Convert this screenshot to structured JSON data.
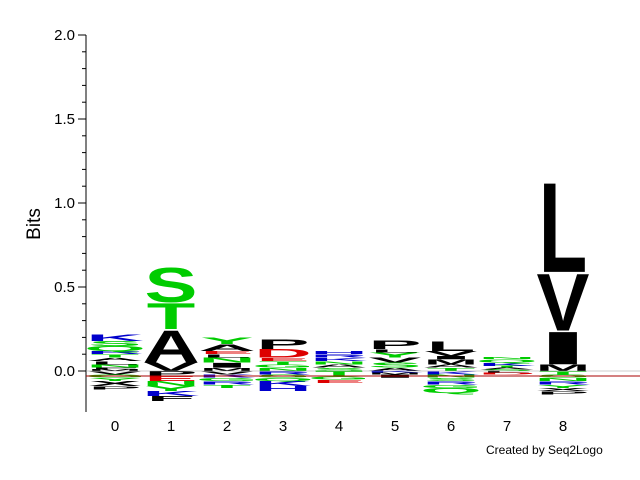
{
  "credit": "Created by Seq2Logo",
  "colors": {
    "hydrophobic": "#000000",
    "polar": "#00cc00",
    "basic": "#0000cc",
    "acidic": "#dd0000",
    "other": "#000000",
    "baseline": "#aa0000"
  },
  "chart_data": {
    "type": "sequence-logo",
    "title": "",
    "xlabel": "",
    "ylabel": "Bits",
    "ylim": [
      -0.25,
      2.0
    ],
    "yticks": [
      "0.0",
      "0.5",
      "1.0",
      "1.5",
      "2.0"
    ],
    "ytick_values": [
      0.0,
      0.5,
      1.0,
      1.5,
      2.0
    ],
    "positions": [
      "0",
      "1",
      "2",
      "3",
      "4",
      "5",
      "6",
      "7",
      "8"
    ],
    "columns": [
      {
        "position": "0",
        "positive": [
          {
            "letter": "M",
            "height": 0.01
          },
          {
            "letter": "F",
            "height": 0.01
          },
          {
            "letter": "N",
            "height": 0.02
          },
          {
            "letter": "L",
            "height": 0.02
          },
          {
            "letter": "A",
            "height": 0.02
          },
          {
            "letter": "T",
            "height": 0.02
          },
          {
            "letter": "R",
            "height": 0.02
          },
          {
            "letter": "Q",
            "height": 0.03
          },
          {
            "letter": "S",
            "height": 0.03
          },
          {
            "letter": "K",
            "height": 0.04
          }
        ],
        "negative": [
          {
            "letter": "V",
            "height": 0.02
          },
          {
            "letter": "G",
            "height": 0.02
          },
          {
            "letter": "Y",
            "height": 0.02
          },
          {
            "letter": "X",
            "height": 0.03
          },
          {
            "letter": "P",
            "height": 0.02
          }
        ]
      },
      {
        "position": "1",
        "positive": [
          {
            "letter": "V",
            "height": 0.05
          },
          {
            "letter": "A",
            "height": 0.2
          },
          {
            "letter": "T",
            "height": 0.16
          },
          {
            "letter": "S",
            "height": 0.21
          }
        ],
        "negative": [
          {
            "letter": "P",
            "height": 0.03
          },
          {
            "letter": "E",
            "height": 0.03
          },
          {
            "letter": "N",
            "height": 0.03
          },
          {
            "letter": "Y",
            "height": 0.03
          },
          {
            "letter": "K",
            "height": 0.03
          },
          {
            "letter": "F",
            "height": 0.03
          }
        ]
      },
      {
        "position": "2",
        "positive": [
          {
            "letter": "M",
            "height": 0.02
          },
          {
            "letter": "I",
            "height": 0.03
          },
          {
            "letter": "N",
            "height": 0.03
          },
          {
            "letter": "L",
            "height": 0.02
          },
          {
            "letter": "E",
            "height": 0.02
          },
          {
            "letter": "A",
            "height": 0.04
          },
          {
            "letter": "Y",
            "height": 0.04
          }
        ],
        "negative": [
          {
            "letter": "V",
            "height": 0.02
          },
          {
            "letter": "K",
            "height": 0.02
          },
          {
            "letter": "G",
            "height": 0.02
          },
          {
            "letter": "R",
            "height": 0.02
          },
          {
            "letter": "T",
            "height": 0.02
          }
        ]
      },
      {
        "position": "3",
        "positive": [
          {
            "letter": "N",
            "height": 0.02
          },
          {
            "letter": "G",
            "height": 0.02
          },
          {
            "letter": "T",
            "height": 0.02
          },
          {
            "letter": "E",
            "height": 0.02
          },
          {
            "letter": "D",
            "height": 0.05
          },
          {
            "letter": "P",
            "height": 0.06
          }
        ],
        "negative": [
          {
            "letter": "R",
            "height": 0.02
          },
          {
            "letter": "S",
            "height": 0.02
          },
          {
            "letter": "Q",
            "height": 0.02
          },
          {
            "letter": "K",
            "height": 0.03
          },
          {
            "letter": "H",
            "height": 0.03
          }
        ]
      },
      {
        "position": "4",
        "positive": [
          {
            "letter": "S",
            "height": 0.02
          },
          {
            "letter": "A",
            "height": 0.02
          },
          {
            "letter": "N",
            "height": 0.02
          },
          {
            "letter": "K",
            "height": 0.02
          },
          {
            "letter": "R",
            "height": 0.02
          },
          {
            "letter": "H",
            "height": 0.02
          }
        ],
        "negative": [
          {
            "letter": "T",
            "height": 0.03
          },
          {
            "letter": "G",
            "height": 0.02
          },
          {
            "letter": "E",
            "height": 0.02
          }
        ]
      },
      {
        "position": "5",
        "positive": [
          {
            "letter": "A",
            "height": 0.02
          },
          {
            "letter": "S",
            "height": 0.03
          },
          {
            "letter": "V",
            "height": 0.03
          },
          {
            "letter": "Y",
            "height": 0.03
          },
          {
            "letter": "L",
            "height": 0.02
          },
          {
            "letter": "P",
            "height": 0.05
          }
        ],
        "negative": [
          {
            "letter": "K",
            "height": 0.01
          },
          {
            "letter": "M",
            "height": 0.01
          },
          {
            "letter": "I",
            "height": 0.02
          }
        ]
      },
      {
        "position": "6",
        "positive": [
          {
            "letter": "T",
            "height": 0.02
          },
          {
            "letter": "A",
            "height": 0.02
          },
          {
            "letter": "M",
            "height": 0.03
          },
          {
            "letter": "I",
            "height": 0.02
          },
          {
            "letter": "V",
            "height": 0.03
          },
          {
            "letter": "L",
            "height": 0.06
          }
        ],
        "negative": [
          {
            "letter": "K",
            "height": 0.02
          },
          {
            "letter": "N",
            "height": 0.02
          },
          {
            "letter": "S",
            "height": 0.02
          },
          {
            "letter": "R",
            "height": 0.02
          },
          {
            "letter": "G",
            "height": 0.02
          },
          {
            "letter": "Q",
            "height": 0.03
          }
        ]
      },
      {
        "position": "7",
        "positive": [
          {
            "letter": "S",
            "height": 0.01
          },
          {
            "letter": "A",
            "height": 0.01
          },
          {
            "letter": "T",
            "height": 0.01
          },
          {
            "letter": "K",
            "height": 0.02
          },
          {
            "letter": "Q",
            "height": 0.02
          },
          {
            "letter": "N",
            "height": 0.01
          }
        ],
        "negative": [
          {
            "letter": "L",
            "height": 0.01
          },
          {
            "letter": "D",
            "height": 0.01
          }
        ]
      },
      {
        "position": "8",
        "positive": [
          {
            "letter": "M",
            "height": 0.04
          },
          {
            "letter": "I",
            "height": 0.2
          },
          {
            "letter": "V",
            "height": 0.35
          },
          {
            "letter": "L",
            "height": 0.55
          }
        ],
        "negative": [
          {
            "letter": "T",
            "height": 0.02
          },
          {
            "letter": "S",
            "height": 0.02
          },
          {
            "letter": "N",
            "height": 0.02
          },
          {
            "letter": "R",
            "height": 0.02
          },
          {
            "letter": "Y",
            "height": 0.02
          },
          {
            "letter": "X",
            "height": 0.02
          },
          {
            "letter": "P",
            "height": 0.02
          }
        ]
      }
    ]
  }
}
